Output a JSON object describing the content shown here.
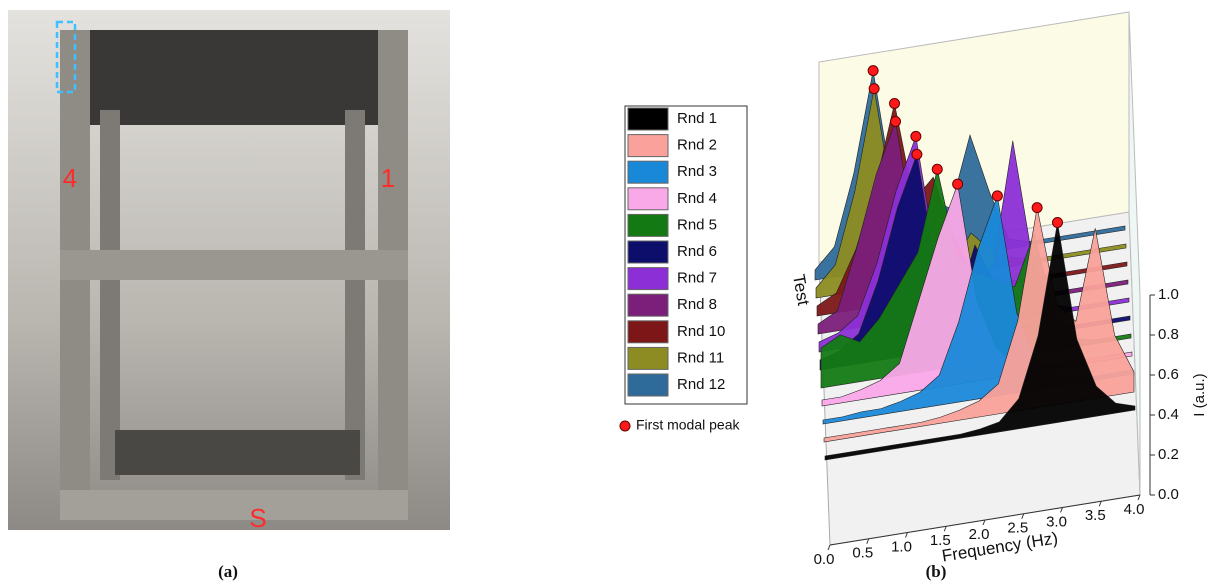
{
  "photo": {
    "labels": [
      "4",
      "1",
      "S"
    ],
    "caption": "(a)"
  },
  "chart_data": {
    "type": "waterfall",
    "caption": "(b)",
    "xlabel": "Frequency (Hz)",
    "ylabel": "I (a.u.)",
    "zlabel": "Test",
    "marker_label": "First modal peak",
    "marker_color": "#ff1a1a",
    "x": [
      0,
      0.25,
      0.5,
      0.75,
      1.0,
      1.25,
      1.5,
      1.75,
      2.0,
      2.25,
      2.5,
      2.75,
      3.0,
      3.25,
      3.5,
      3.75,
      4.0
    ],
    "xlim": [
      0,
      4
    ],
    "ylim": [
      0,
      1
    ],
    "xticks": [
      {
        "value": 0,
        "label": "0.0"
      },
      {
        "value": 0.5,
        "label": "0.5"
      },
      {
        "value": 1,
        "label": "1.0"
      },
      {
        "value": 1.5,
        "label": "1.5"
      },
      {
        "value": 2,
        "label": "2.0"
      },
      {
        "value": 2.5,
        "label": "2.5"
      },
      {
        "value": 3,
        "label": "3.0"
      },
      {
        "value": 3.5,
        "label": "3.5"
      },
      {
        "value": 4,
        "label": "4.0"
      }
    ],
    "yticks": [
      {
        "value": 0,
        "label": "0.0"
      },
      {
        "value": 0.2,
        "label": "0.2"
      },
      {
        "value": 0.4,
        "label": "0.4"
      },
      {
        "value": 0.6,
        "label": "0.6"
      },
      {
        "value": 0.8,
        "label": "0.8"
      },
      {
        "value": 1,
        "label": "1.0"
      }
    ],
    "series": [
      {
        "name": "Rnd 1",
        "color": "#000000",
        "values": [
          0.02,
          0.02,
          0.02,
          0.02,
          0.02,
          0.02,
          0.02,
          0.02,
          0.03,
          0.05,
          0.15,
          0.45,
          1.0,
          0.4,
          0.15,
          0.05,
          0.02
        ]
      },
      {
        "name": "Rnd 2",
        "color": "#f9a19a",
        "values": [
          0.02,
          0.02,
          0.02,
          0.02,
          0.02,
          0.02,
          0.03,
          0.05,
          0.08,
          0.15,
          0.45,
          1.0,
          0.5,
          0.4,
          0.85,
          0.3,
          0.1
        ]
      },
      {
        "name": "Rnd 3",
        "color": "#1a88d8",
        "values": [
          0.02,
          0.02,
          0.03,
          0.03,
          0.05,
          0.08,
          0.15,
          0.4,
          0.75,
          1.0,
          0.4,
          0.15,
          0.05,
          0.03,
          0.02,
          0.02,
          0.02
        ]
      },
      {
        "name": "Rnd 4",
        "color": "#f9a8e8",
        "values": [
          0.03,
          0.03,
          0.05,
          0.08,
          0.15,
          0.45,
          0.75,
          1.0,
          0.4,
          0.15,
          0.05,
          0.03,
          0.02,
          0.02,
          0.02,
          0.02,
          0.02
        ]
      },
      {
        "name": "Rnd 5",
        "color": "#137a13",
        "values": [
          0.2,
          0.25,
          0.2,
          0.3,
          0.45,
          0.6,
          1.0,
          0.55,
          0.45,
          0.4,
          0.35,
          0.6,
          0.2,
          0.05,
          0.02,
          0.02,
          0.02
        ]
      },
      {
        "name": "Rnd 6",
        "color": "#0d0d6b",
        "values": [
          0.05,
          0.08,
          0.15,
          0.4,
          0.75,
          1.0,
          0.4,
          0.2,
          0.5,
          0.3,
          0.1,
          0.05,
          0.02,
          0.02,
          0.02,
          0.02,
          0.02
        ]
      },
      {
        "name": "Rnd 7",
        "color": "#8c2fd6",
        "values": [
          0.05,
          0.08,
          0.15,
          0.4,
          0.75,
          1.0,
          0.4,
          0.2,
          0.15,
          0.3,
          0.9,
          0.3,
          0.05,
          0.02,
          0.02,
          0.02,
          0.02
        ]
      },
      {
        "name": "Rnd 8",
        "color": "#7b1f7b",
        "values": [
          0.05,
          0.1,
          0.4,
          0.75,
          1.0,
          0.4,
          0.15,
          0.1,
          0.05,
          0.03,
          0.02,
          0.02,
          0.02,
          0.02,
          0.02,
          0.02,
          0.02
        ]
      },
      {
        "name": "Rnd 10",
        "color": "#7d1717",
        "values": [
          0.05,
          0.1,
          0.3,
          0.6,
          1.0,
          0.5,
          0.6,
          0.3,
          0.1,
          0.05,
          0.02,
          0.02,
          0.02,
          0.02,
          0.02,
          0.02,
          0.02
        ]
      },
      {
        "name": "Rnd 11",
        "color": "#8c8c22",
        "values": [
          0.05,
          0.15,
          0.5,
          1.0,
          0.4,
          0.15,
          0.1,
          0.05,
          0.2,
          0.1,
          0.05,
          0.02,
          0.02,
          0.02,
          0.02,
          0.02,
          0.02
        ]
      },
      {
        "name": "Rnd 12",
        "color": "#2f6b9a",
        "values": [
          0.05,
          0.15,
          0.5,
          1.0,
          0.4,
          0.2,
          0.3,
          0.25,
          0.6,
          0.3,
          0.05,
          0.02,
          0.02,
          0.02,
          0.02,
          0.02,
          0.02
        ]
      }
    ]
  }
}
